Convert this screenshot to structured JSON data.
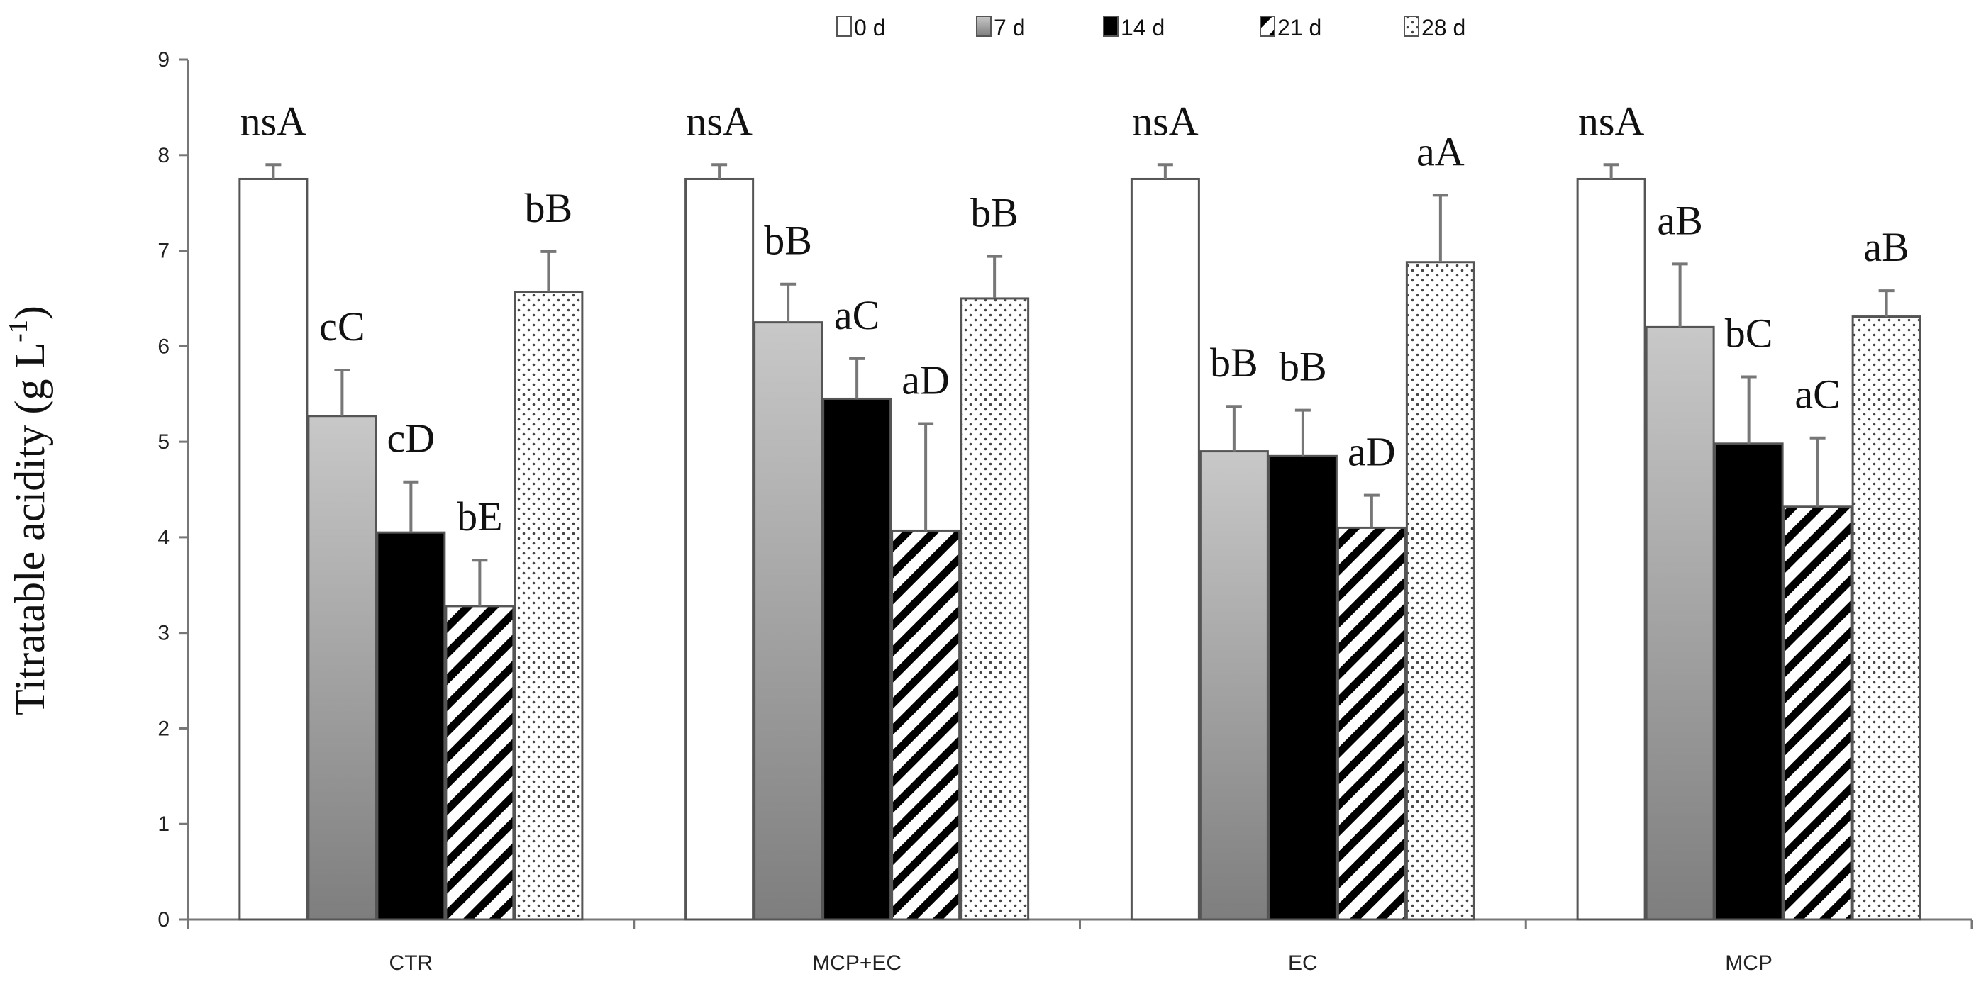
{
  "chart_data": {
    "type": "bar",
    "title": "",
    "xlabel": "",
    "ylabel": "Titratable acidity (g L",
    "ylabel_sup": "-1",
    "ylabel_close": ")",
    "ylim": [
      0,
      9
    ],
    "yticks": [
      0,
      1,
      2,
      3,
      4,
      5,
      6,
      7,
      8,
      9
    ],
    "grid": false,
    "legend_position": "top",
    "categories": [
      "CTR",
      "MCP+EC",
      "EC",
      "MCP"
    ],
    "series": [
      {
        "name": "0 d",
        "pattern": "white",
        "values": [
          7.75,
          7.75,
          7.75,
          7.75
        ],
        "errors": [
          0.15,
          0.15,
          0.15,
          0.15
        ],
        "labels": [
          "nsA",
          "nsA",
          "nsA",
          "nsA"
        ]
      },
      {
        "name": "7 d",
        "pattern": "gradient",
        "values": [
          5.27,
          6.25,
          4.9,
          6.2
        ],
        "errors": [
          0.48,
          0.4,
          0.47,
          0.66
        ],
        "labels": [
          "cC",
          "bB",
          "bB",
          "aB"
        ]
      },
      {
        "name": "14 d",
        "pattern": "black",
        "values": [
          4.05,
          5.45,
          4.85,
          4.98
        ],
        "errors": [
          0.53,
          0.42,
          0.48,
          0.7
        ],
        "labels": [
          "cD",
          "aC",
          "bB",
          "bC"
        ]
      },
      {
        "name": "21 d",
        "pattern": "hatch",
        "values": [
          3.28,
          4.07,
          4.1,
          4.32
        ],
        "errors": [
          0.48,
          1.12,
          0.34,
          0.72
        ],
        "labels": [
          "bE",
          "aD",
          "aD",
          "aC"
        ]
      },
      {
        "name": "28 d",
        "pattern": "dots",
        "values": [
          6.57,
          6.5,
          6.88,
          6.31
        ],
        "errors": [
          0.42,
          0.44,
          0.7,
          0.27
        ],
        "labels": [
          "bB",
          "bB",
          "aA",
          "aB"
        ]
      }
    ]
  }
}
